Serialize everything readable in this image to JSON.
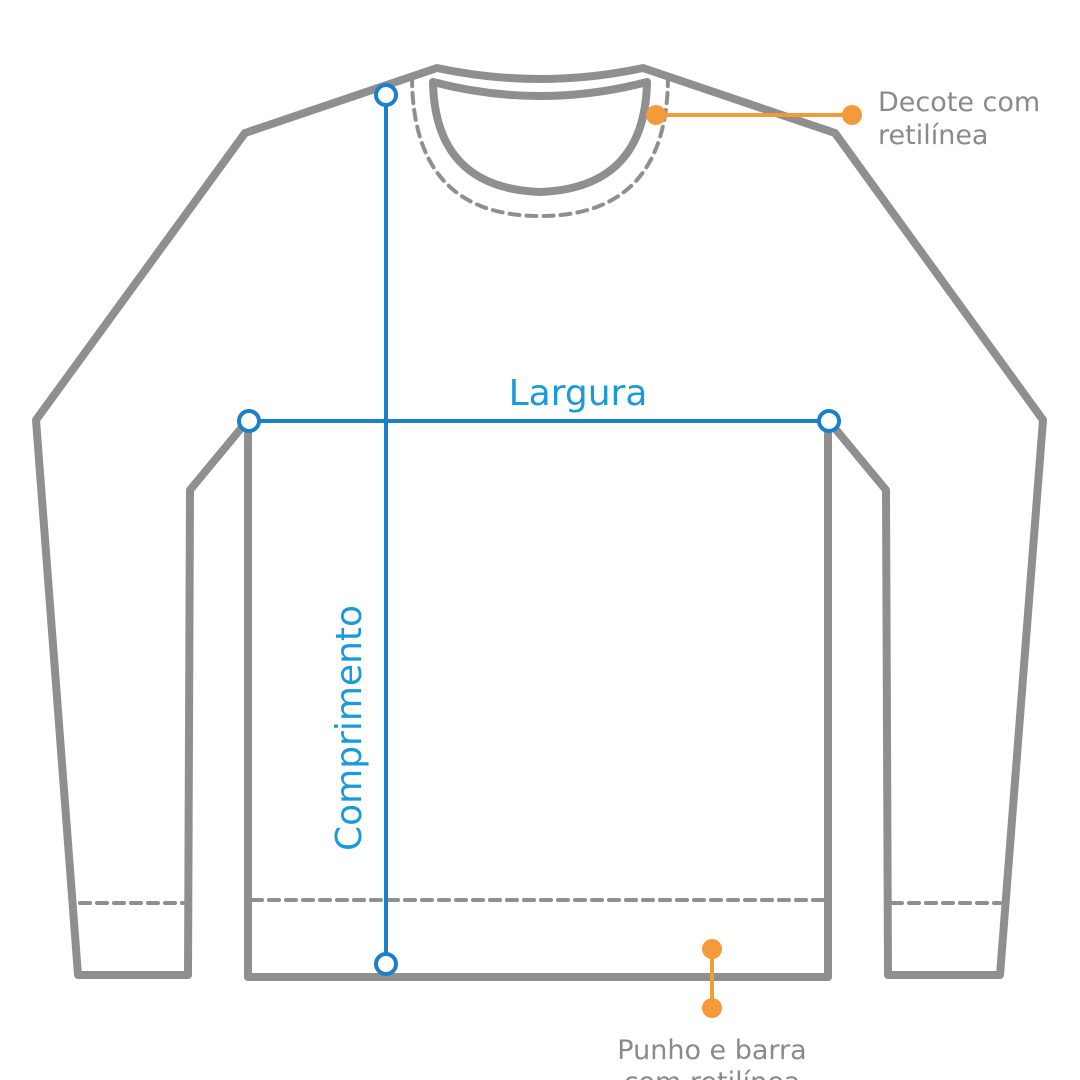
{
  "diagram": {
    "measurements": {
      "width_label": "Largura",
      "length_label": "Comprimento"
    },
    "callouts": {
      "neckline": {
        "line1": "Decote com",
        "line2": "retilínea"
      },
      "hem": {
        "line1": "Punho e barra",
        "line2": "com retilínea"
      }
    },
    "colors": {
      "outline": "#8f8f8f",
      "measure": "#1a80c8",
      "measure_text": "#1a9ad8",
      "callout": "#f59a3a",
      "callout_text": "#8a8a8a"
    }
  }
}
